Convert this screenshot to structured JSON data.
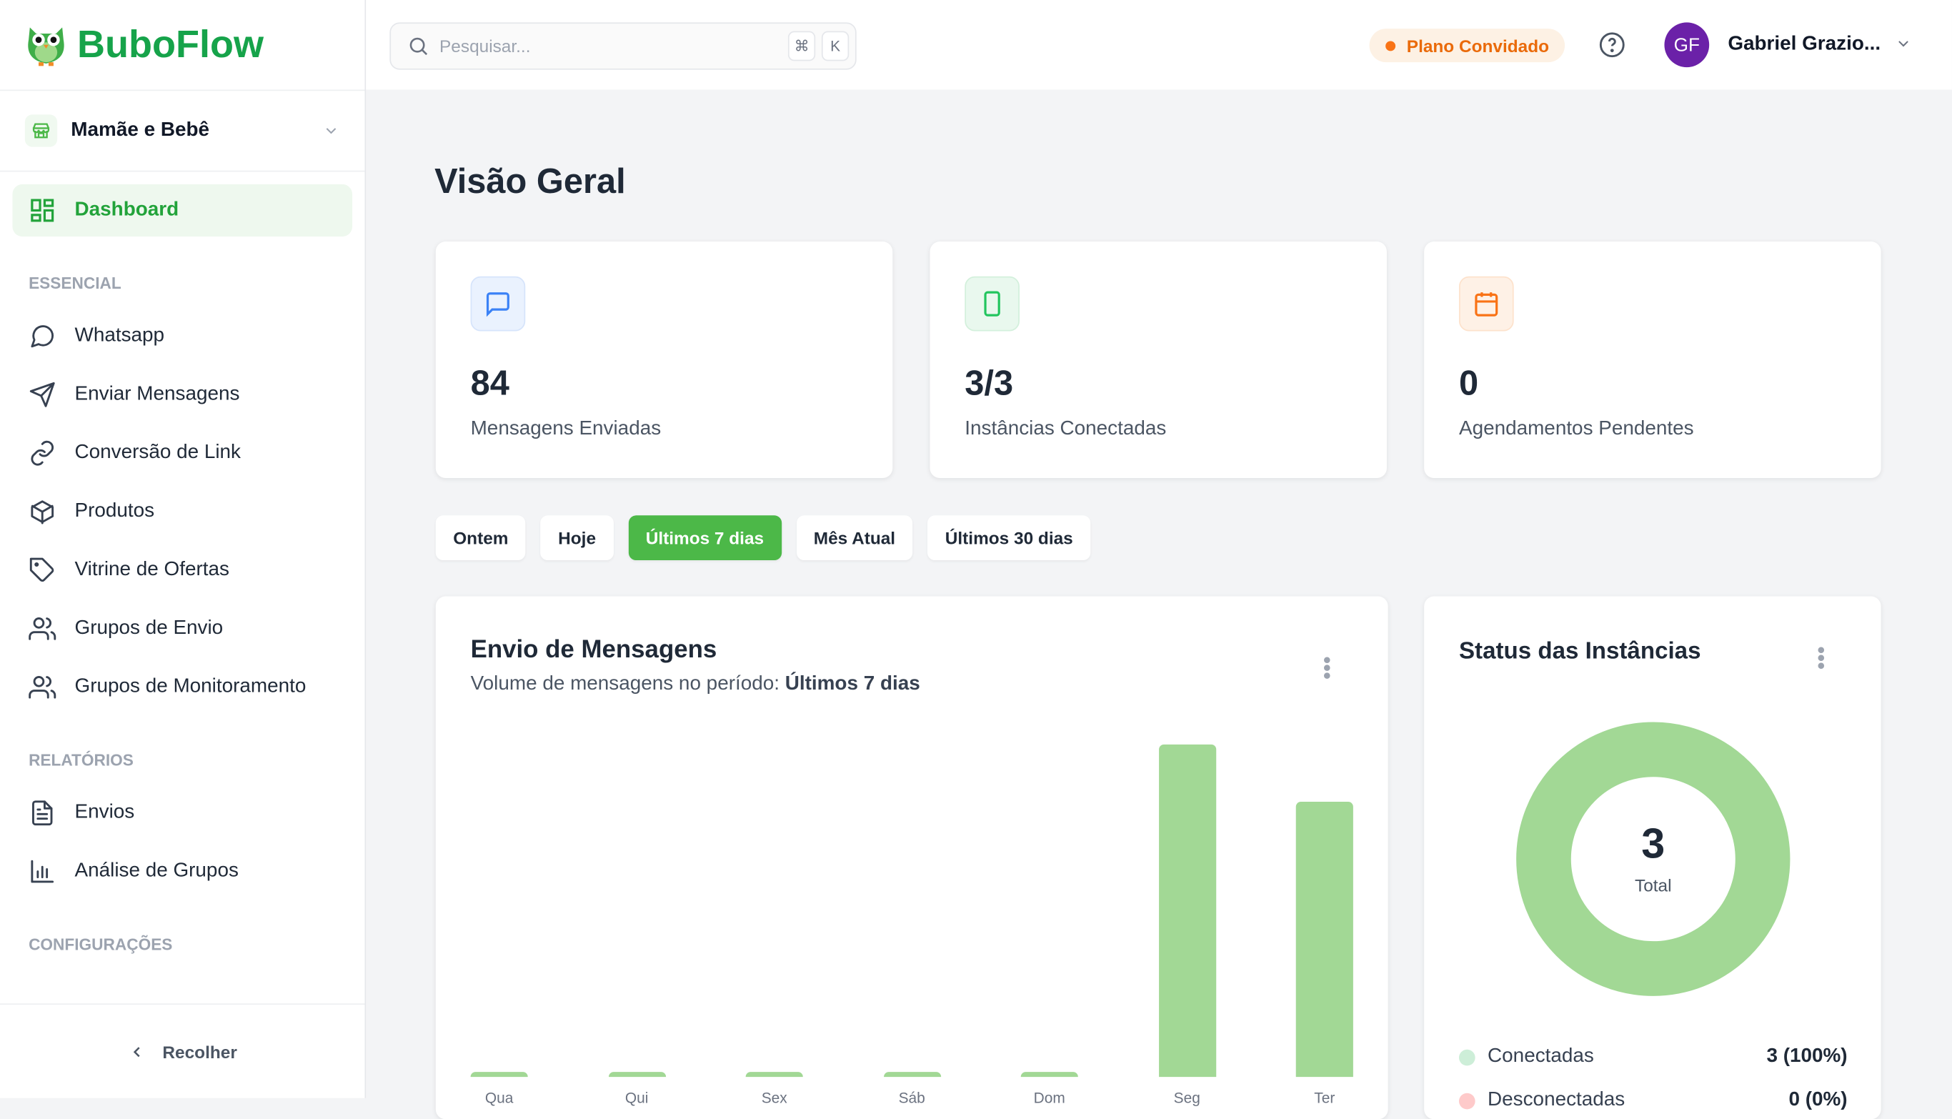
{
  "brand": {
    "name": "BuboFlow"
  },
  "store": {
    "name": "Mamãe e Bebê"
  },
  "sidebar": {
    "dashboard": "Dashboard",
    "sections": [
      {
        "title": "ESSENCIAL",
        "items": [
          {
            "label": "Whatsapp",
            "icon": "message-circle-icon"
          },
          {
            "label": "Enviar Mensagens",
            "icon": "send-icon"
          },
          {
            "label": "Conversão de Link",
            "icon": "link-icon"
          },
          {
            "label": "Produtos",
            "icon": "package-icon"
          },
          {
            "label": "Vitrine de Ofertas",
            "icon": "tag-icon"
          },
          {
            "label": "Grupos de Envio",
            "icon": "users-icon"
          },
          {
            "label": "Grupos de Monitoramento",
            "icon": "users-icon"
          }
        ]
      },
      {
        "title": "RELATÓRIOS",
        "items": [
          {
            "label": "Envios",
            "icon": "file-text-icon"
          },
          {
            "label": "Análise de Grupos",
            "icon": "bar-chart-icon"
          }
        ]
      },
      {
        "title": "CONFIGURAÇÕES",
        "items": []
      }
    ],
    "collapse": "Recolher"
  },
  "topbar": {
    "search_placeholder": "Pesquisar...",
    "kbd1": "⌘",
    "kbd2": "K",
    "plan": "Plano Convidado",
    "avatar": "GF",
    "user": "Gabriel Grazio..."
  },
  "page": {
    "title": "Visão Geral"
  },
  "stats": [
    {
      "value": "84",
      "label": "Mensagens Enviadas",
      "color": "#3b82f6"
    },
    {
      "value": "3/3",
      "label": "Instâncias Conectadas",
      "color": "#22c55e"
    },
    {
      "value": "0",
      "label": "Agendamentos Pendentes",
      "color": "#f97316"
    }
  ],
  "filters": [
    "Ontem",
    "Hoje",
    "Últimos 7 dias",
    "Mês Atual",
    "Últimos 30 dias"
  ],
  "active_filter": "Últimos 7 dias",
  "messages_card": {
    "title": "Envio de Mensagens",
    "subtitle": "Volume de mensagens no período:",
    "period": "Últimos 7 dias"
  },
  "chart_data": {
    "type": "bar",
    "title": "Envio de Mensagens",
    "categories": [
      "Qua",
      "Qui",
      "Sex",
      "Sáb",
      "Dom",
      "Seg",
      "Ter"
    ],
    "values": [
      0,
      0,
      0,
      0,
      0,
      46,
      38
    ],
    "ylim": [
      0,
      46
    ],
    "color": "#a2d895"
  },
  "status_card": {
    "title": "Status das Instâncias",
    "total": "3",
    "total_label": "Total",
    "legend": [
      {
        "label": "Conectadas",
        "value": "3 (100%)",
        "color": "#cdeed8"
      },
      {
        "label": "Desconectadas",
        "value": "0 (0%)",
        "color": "#fecaca"
      }
    ]
  }
}
